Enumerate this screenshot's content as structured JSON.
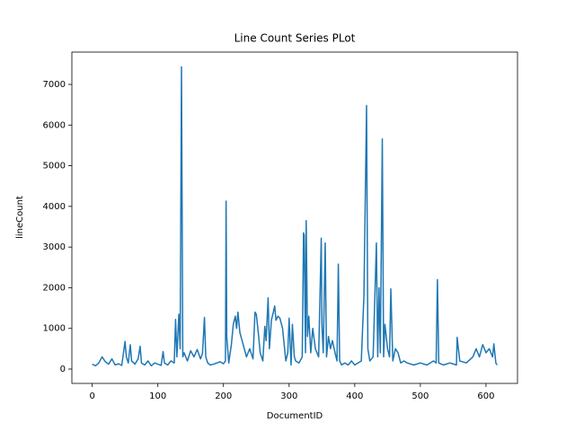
{
  "chart_data": {
    "type": "line",
    "title": "Line Count Series PLot",
    "x_label": "DocumentID",
    "y_label": "lineCount",
    "x": [
      0,
      5,
      10,
      15,
      20,
      25,
      30,
      35,
      40,
      45,
      50,
      52,
      55,
      58,
      60,
      65,
      70,
      73,
      75,
      80,
      85,
      90,
      95,
      100,
      105,
      108,
      110,
      115,
      120,
      125,
      127,
      129,
      132,
      134,
      136,
      138,
      140,
      145,
      150,
      155,
      160,
      165,
      168,
      171,
      173,
      176,
      180,
      185,
      190,
      195,
      200,
      203,
      204,
      205,
      208,
      212,
      215,
      218,
      220,
      222,
      225,
      230,
      235,
      240,
      245,
      248,
      250,
      253,
      256,
      260,
      263,
      265,
      268,
      270,
      273,
      276,
      278,
      280,
      283,
      286,
      290,
      295,
      298,
      300,
      303,
      305,
      308,
      310,
      315,
      320,
      322,
      323,
      325,
      326,
      328,
      330,
      333,
      336,
      340,
      345,
      349,
      350,
      352,
      355,
      357,
      360,
      363,
      366,
      370,
      373,
      375,
      377,
      380,
      385,
      390,
      395,
      400,
      405,
      410,
      414,
      418,
      420,
      423,
      428,
      433,
      435,
      437,
      439,
      442,
      444,
      446,
      450,
      453,
      455,
      458,
      462,
      466,
      470,
      475,
      480,
      490,
      500,
      510,
      520,
      524,
      526,
      528,
      535,
      545,
      555,
      556,
      560,
      570,
      580,
      585,
      590,
      595,
      600,
      605,
      610,
      612,
      615,
      617
    ],
    "series": [
      {
        "name": "lineCount",
        "color": "#1f77b4",
        "values": [
          120,
          80,
          150,
          300,
          180,
          120,
          250,
          100,
          130,
          90,
          680,
          300,
          150,
          600,
          200,
          120,
          250,
          560,
          150,
          100,
          200,
          80,
          150,
          120,
          90,
          430,
          150,
          100,
          200,
          150,
          1220,
          300,
          1350,
          500,
          7430,
          300,
          400,
          200,
          450,
          300,
          480,
          250,
          380,
          1270,
          300,
          150,
          100,
          120,
          150,
          180,
          130,
          200,
          4130,
          800,
          150,
          600,
          1100,
          1300,
          1000,
          1400,
          900,
          600,
          300,
          500,
          250,
          1400,
          1350,
          900,
          400,
          200,
          1050,
          700,
          1750,
          500,
          1200,
          1400,
          1550,
          1200,
          1300,
          1250,
          1000,
          200,
          400,
          1250,
          100,
          1100,
          300,
          200,
          150,
          300,
          3350,
          3300,
          400,
          3650,
          800,
          1300,
          400,
          1000,
          500,
          300,
          3220,
          1100,
          400,
          3100,
          300,
          800,
          500,
          700,
          400,
          200,
          2580,
          200,
          100,
          150,
          100,
          200,
          100,
          150,
          200,
          1800,
          6480,
          500,
          200,
          300,
          3100,
          300,
          2000,
          400,
          5660,
          300,
          1100,
          500,
          300,
          1970,
          200,
          500,
          400,
          150,
          200,
          150,
          100,
          150,
          100,
          200,
          150,
          2200,
          150,
          100,
          150,
          100,
          780,
          200,
          150,
          300,
          500,
          300,
          600,
          400,
          500,
          300,
          620,
          150,
          100
        ]
      }
    ],
    "xlim": [
      -31,
      648
    ],
    "ylim": [
      -353,
      7795
    ],
    "xticks": [
      0,
      100,
      200,
      300,
      400,
      500,
      600
    ],
    "yticks": [
      0,
      1000,
      2000,
      3000,
      4000,
      5000,
      6000,
      7000
    ]
  }
}
